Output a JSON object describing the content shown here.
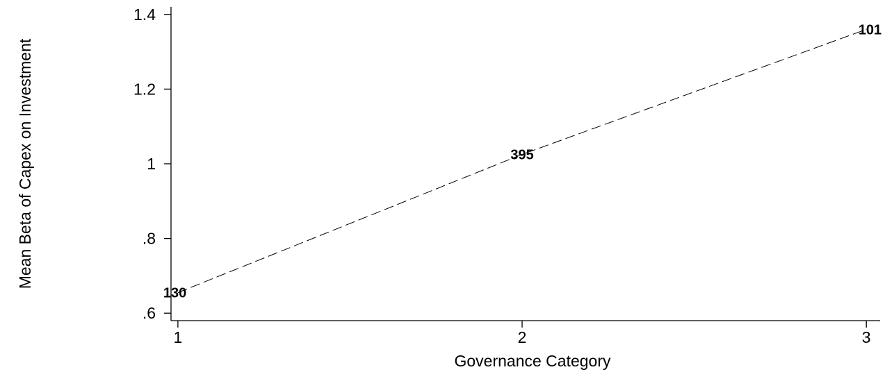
{
  "chart_data": {
    "type": "line",
    "title": "",
    "xlabel": "Governance Category",
    "ylabel": "Mean Beta of Capex on Investment",
    "x": [
      1,
      2,
      3
    ],
    "xlim": [
      0.98,
      3.04
    ],
    "ylim": [
      0.58,
      1.42
    ],
    "x_ticks": [
      1,
      2,
      3
    ],
    "x_tick_labels": [
      "1",
      "2",
      "3"
    ],
    "y_ticks": [
      0.6,
      0.8,
      1.0,
      1.2,
      1.4
    ],
    "y_tick_labels": [
      ".6",
      ".8",
      "1",
      "1.2",
      "1.4"
    ],
    "grid": false,
    "series": [
      {
        "values": [
          0.655,
          1.025,
          1.36
        ],
        "point_labels": [
          "130",
          "395",
          "101"
        ],
        "line_style": "dashed",
        "color": "#000000"
      }
    ]
  }
}
